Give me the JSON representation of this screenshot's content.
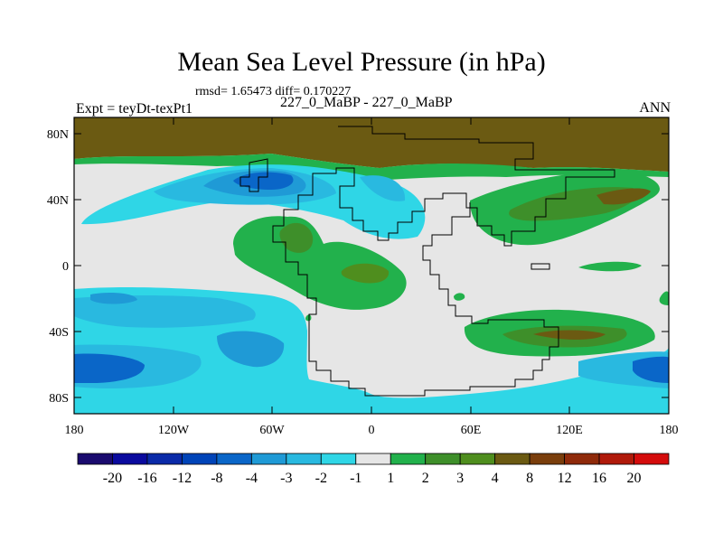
{
  "title": "Mean Sea Level Pressure (in hPa)",
  "subtitle": "rmsd= 1.65473 diff= 0.170227",
  "left_label": "Expt = teyDt-texPt1",
  "center_label": "227_0_MaBP - 227_0_MaBP",
  "right_label": "ANN",
  "map": {
    "lat_ticks": [
      "80N",
      "40N",
      "0",
      "40S",
      "80S"
    ],
    "lon_ticks": [
      "180",
      "120W",
      "60W",
      "0",
      "60E",
      "120E",
      "180"
    ]
  },
  "colorbar": {
    "labels": [
      "-20",
      "-16",
      "-12",
      "-8",
      "-4",
      "-3",
      "-2",
      "-1",
      "1",
      "2",
      "3",
      "4",
      "8",
      "12",
      "16",
      "20"
    ],
    "colors": [
      "#1a0a6e",
      "#0a0a9e",
      "#0a2aa8",
      "#0044b8",
      "#0a66c8",
      "#1f9ad6",
      "#29b9e0",
      "#2fd6e6",
      "#e6e6e6",
      "#22b14c",
      "#3e8f2a",
      "#4f8e1e",
      "#6b5a12",
      "#7a3e0c",
      "#8f2a0a",
      "#b01a0a",
      "#d40c0c"
    ]
  }
}
